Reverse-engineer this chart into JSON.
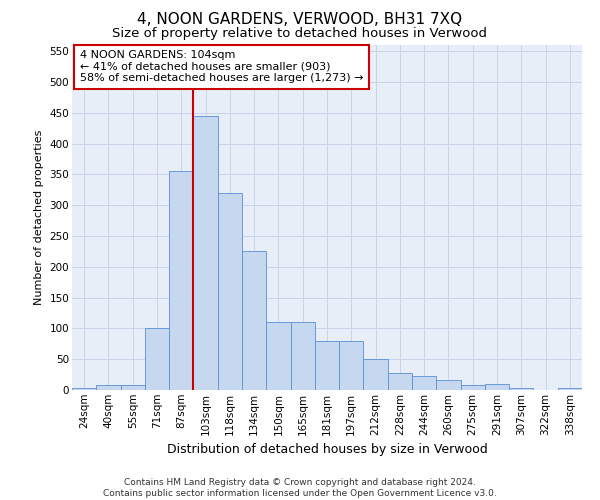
{
  "title": "4, NOON GARDENS, VERWOOD, BH31 7XQ",
  "subtitle": "Size of property relative to detached houses in Verwood",
  "xlabel": "Distribution of detached houses by size in Verwood",
  "ylabel": "Number of detached properties",
  "categories": [
    "24sqm",
    "40sqm",
    "55sqm",
    "71sqm",
    "87sqm",
    "103sqm",
    "118sqm",
    "134sqm",
    "150sqm",
    "165sqm",
    "181sqm",
    "197sqm",
    "212sqm",
    "228sqm",
    "244sqm",
    "260sqm",
    "275sqm",
    "291sqm",
    "307sqm",
    "322sqm",
    "338sqm"
  ],
  "values": [
    3,
    8,
    8,
    100,
    355,
    445,
    320,
    225,
    110,
    110,
    80,
    80,
    50,
    27,
    22,
    17,
    8,
    10,
    3,
    0,
    3
  ],
  "bar_color": "#c5d8f0",
  "bar_edge_color": "#5b8ed6",
  "vline_color": "#cc0000",
  "vline_pos": 4.5,
  "annotation_text": "4 NOON GARDENS: 104sqm\n← 41% of detached houses are smaller (903)\n58% of semi-detached houses are larger (1,273) →",
  "annotation_box_facecolor": "#ffffff",
  "annotation_box_edgecolor": "#cc0000",
  "ylim": [
    0,
    560
  ],
  "yticks": [
    0,
    50,
    100,
    150,
    200,
    250,
    300,
    350,
    400,
    450,
    500,
    550
  ],
  "grid_color": "#c8d4e8",
  "background_color": "#e8eef8",
  "footer_text": "Contains HM Land Registry data © Crown copyright and database right 2024.\nContains public sector information licensed under the Open Government Licence v3.0.",
  "title_fontsize": 11,
  "subtitle_fontsize": 9.5,
  "xlabel_fontsize": 9,
  "ylabel_fontsize": 8,
  "tick_fontsize": 7.5,
  "annotation_fontsize": 8,
  "footer_fontsize": 6.5
}
